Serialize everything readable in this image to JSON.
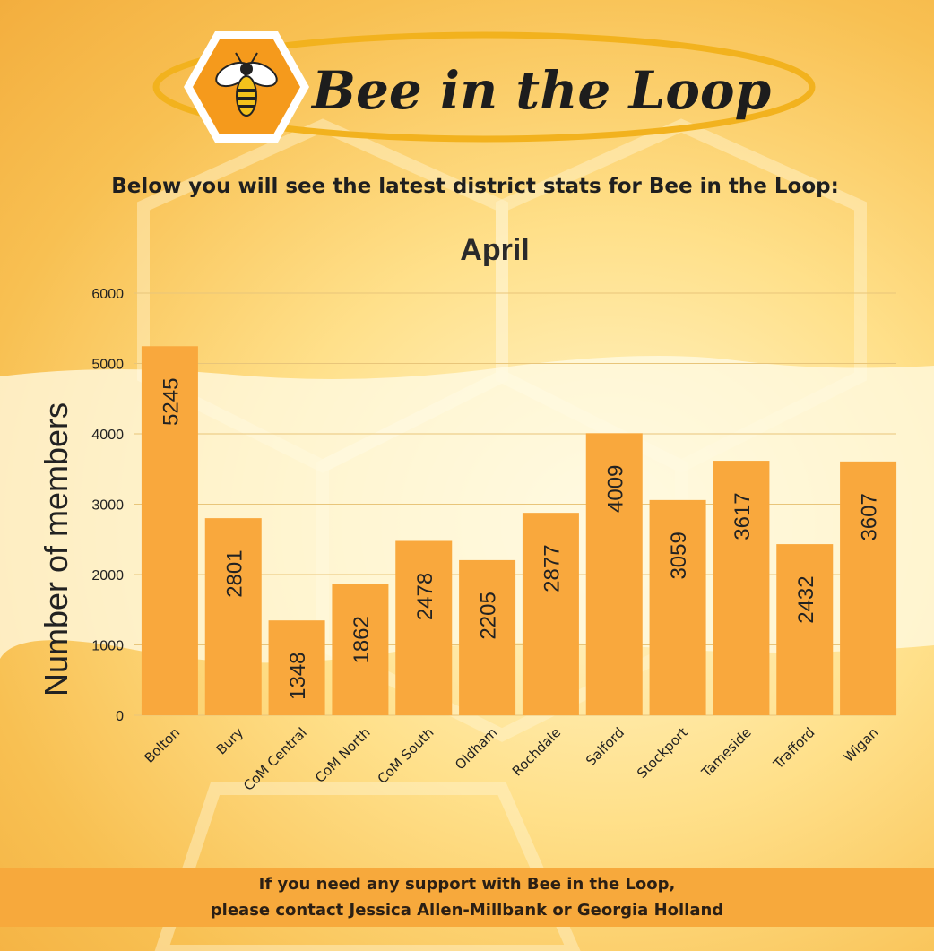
{
  "header": {
    "logo_text": "Bee in the Loop",
    "intro": "Below you will see the latest district stats for Bee in the Loop:"
  },
  "chart_data": {
    "type": "bar",
    "title": "April",
    "xlabel": "",
    "ylabel": "Number of members",
    "ylim": [
      0,
      6000
    ],
    "yticks": [
      0,
      1000,
      2000,
      3000,
      4000,
      5000,
      6000
    ],
    "grid": true,
    "categories": [
      "Bolton",
      "Bury",
      "CoM Central",
      "CoM North",
      "CoM South",
      "Oldham",
      "Rochdale",
      "Salford",
      "Stockport",
      "Tameside",
      "Trafford",
      "Wigan"
    ],
    "values": [
      5245,
      2801,
      1348,
      1862,
      2478,
      2205,
      2877,
      4009,
      3059,
      3617,
      2432,
      3607
    ],
    "colors": {
      "bar": "#f9a83d",
      "grid": "#e8c57a",
      "text": "#222222"
    }
  },
  "footer": {
    "line1": "If you need any support with Bee in the Loop,",
    "line2": "please contact Jessica Allen-Millbank or Georgia Holland"
  },
  "icons": {
    "logo_mark": "bee-icon"
  }
}
